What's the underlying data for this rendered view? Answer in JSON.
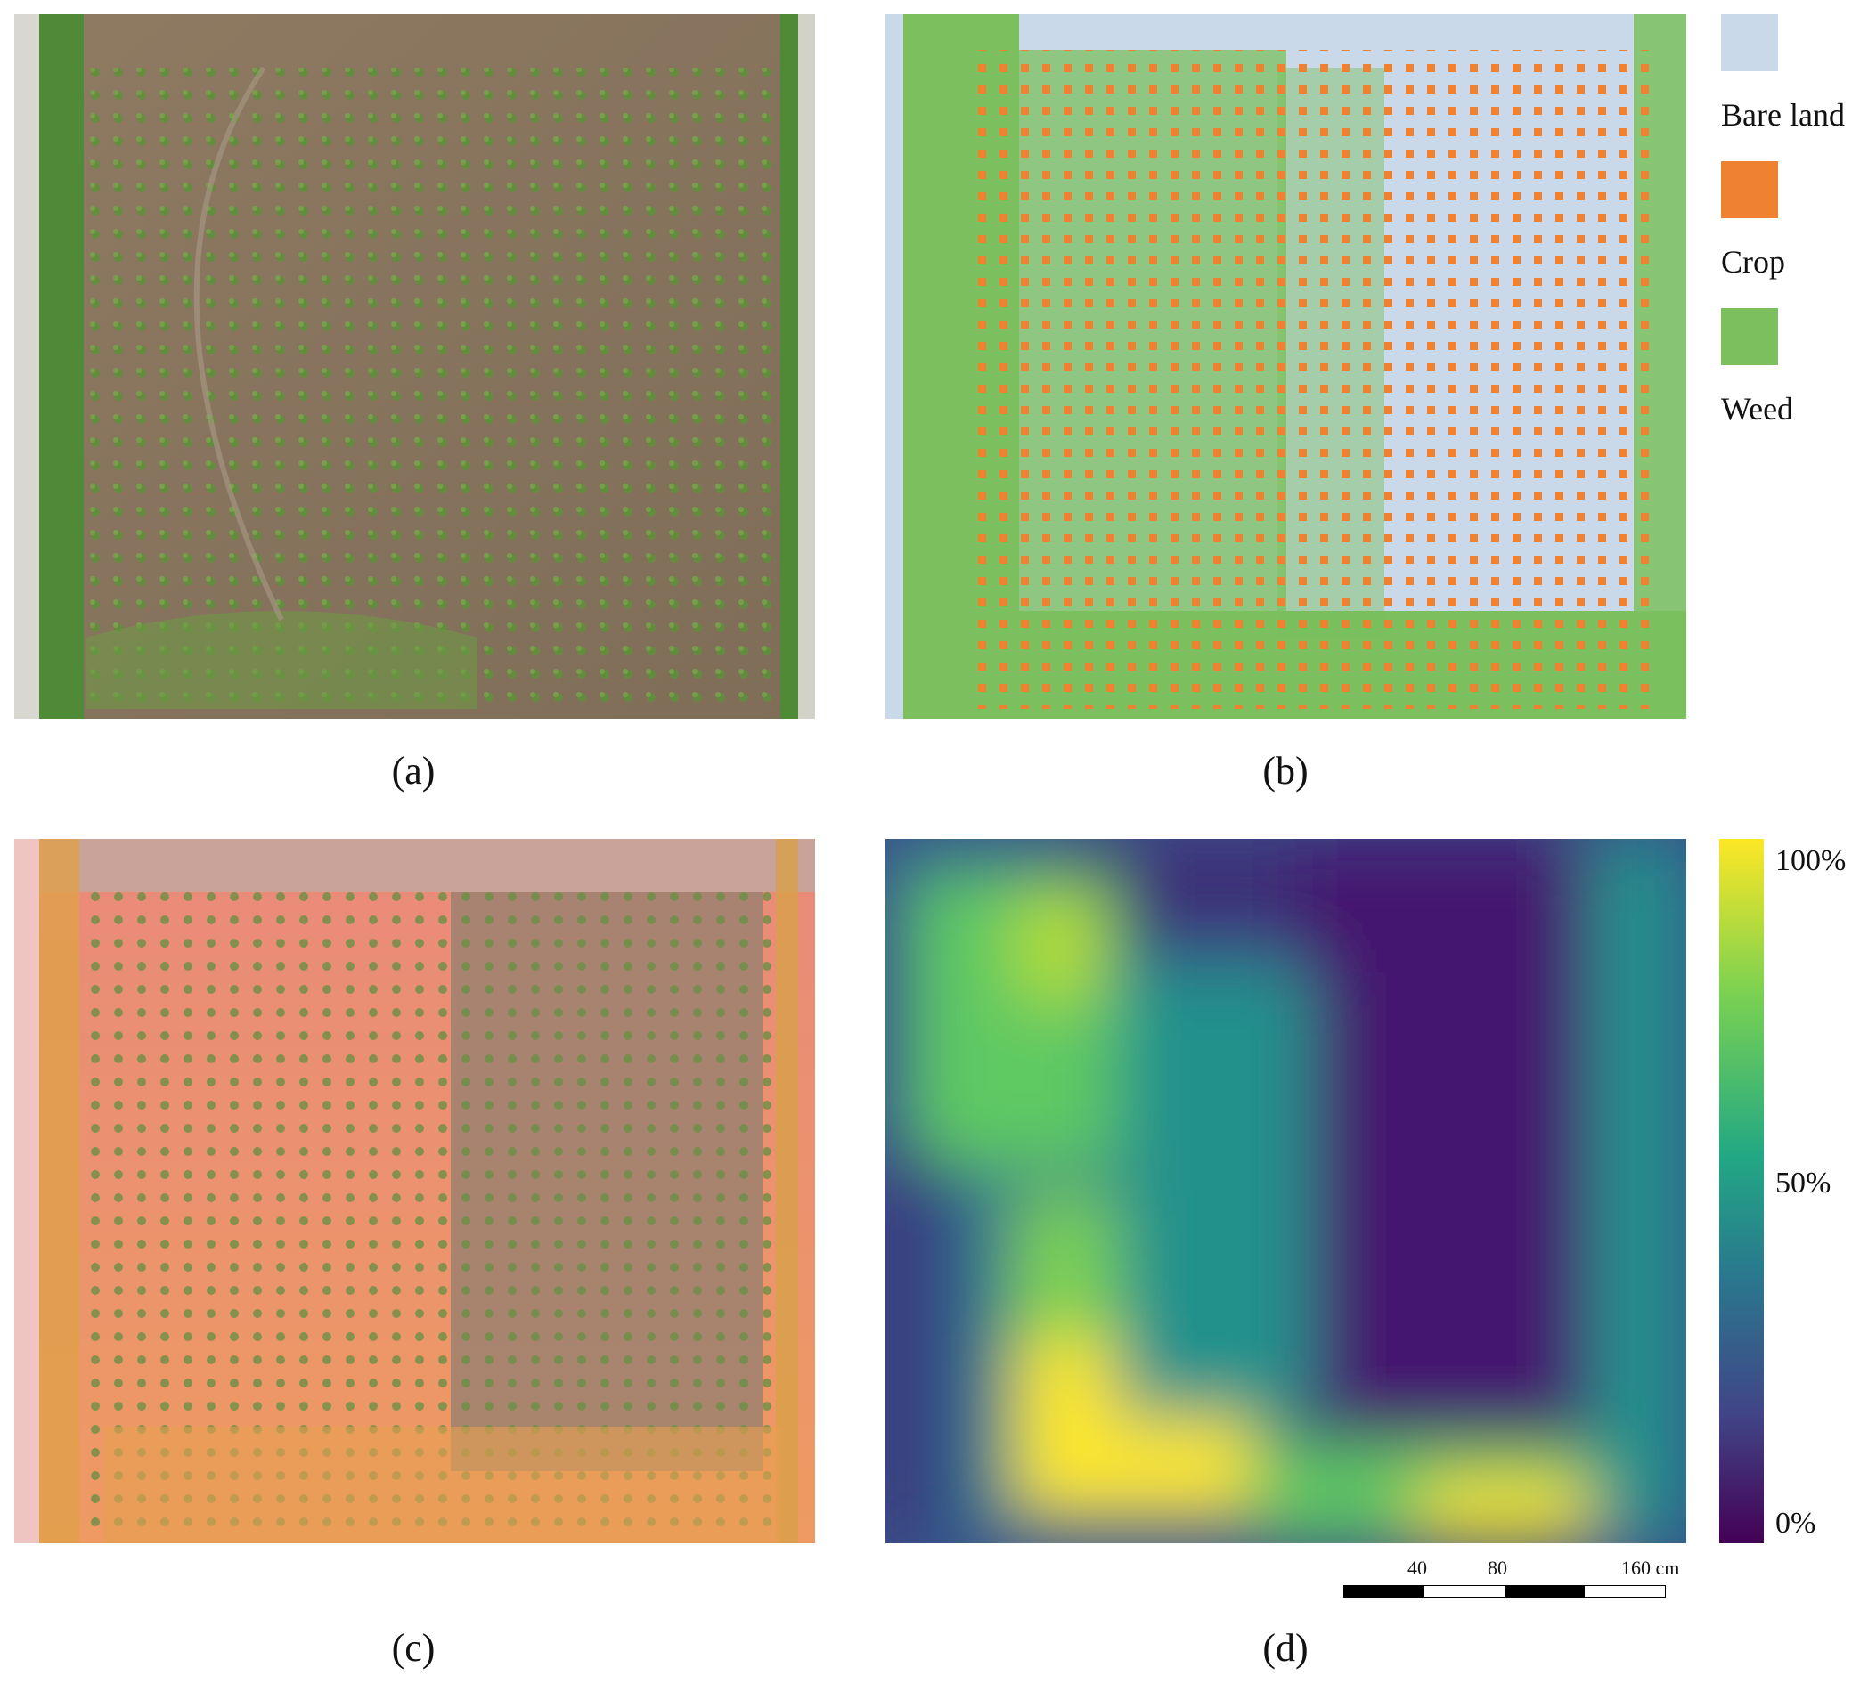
{
  "panels": {
    "a": {
      "caption": "(a)",
      "description": "Aerial RGB photo of crop field"
    },
    "b": {
      "caption": "(b)",
      "description": "Segmentation map"
    },
    "c": {
      "caption": "(c)",
      "description": "Weed overlay on photo"
    },
    "d": {
      "caption": "(d)",
      "description": "Weed density heatmap"
    }
  },
  "legend": {
    "items": [
      {
        "label": "Bare land",
        "color": "#c9d9ea"
      },
      {
        "label": "Crop",
        "color": "#ef8230"
      },
      {
        "label": "Weed",
        "color": "#7bbf5e"
      }
    ]
  },
  "colorbar": {
    "top_label": "100%",
    "mid_label": "50%",
    "bottom_label": "0%",
    "colors": [
      "#fde725",
      "#5ec962",
      "#21918c",
      "#3b528b",
      "#440154"
    ]
  },
  "scalebar": {
    "labels": [
      "40",
      "80",
      "160 cm"
    ]
  },
  "chart_data": {
    "type": "heatmap",
    "title": "",
    "colorbar_range": [
      "0%",
      "100%"
    ]
  }
}
